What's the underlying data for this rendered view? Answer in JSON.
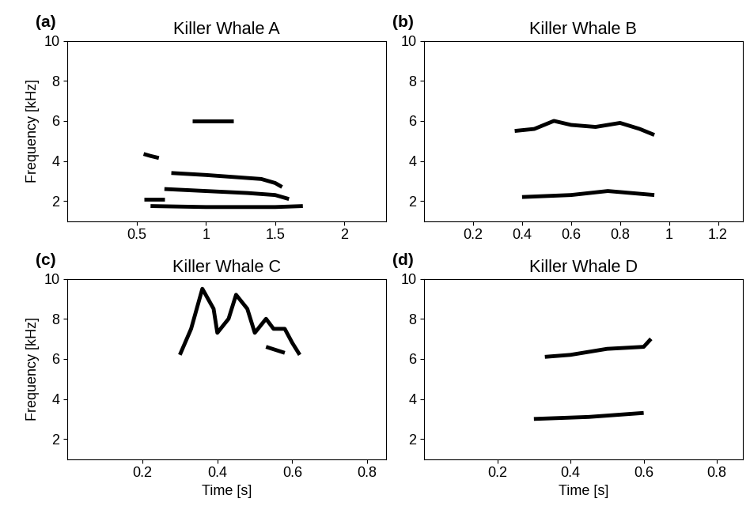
{
  "chart_data": [
    {
      "type": "line",
      "annotation": "(a)",
      "title": "Killer Whale A",
      "y_label": "Frequency [kHz]",
      "xlim": [
        0,
        2.3
      ],
      "xticks": [
        0.5,
        1,
        1.5,
        2
      ],
      "ylim": [
        1,
        10
      ],
      "yticks": [
        2,
        4,
        6,
        8,
        10
      ],
      "series": [
        {
          "color": "#000000",
          "x": [
            0.75,
            1.0,
            1.2,
            1.4,
            1.5,
            1.55
          ],
          "values": [
            3.4,
            3.3,
            3.2,
            3.1,
            2.9,
            2.7
          ]
        },
        {
          "color": "#000000",
          "x": [
            0.7,
            1.0,
            1.3,
            1.5,
            1.6
          ],
          "values": [
            2.6,
            2.5,
            2.4,
            2.3,
            2.1
          ]
        },
        {
          "color": "#000000",
          "x": [
            0.55,
            0.6,
            0.66
          ],
          "values": [
            4.35,
            4.25,
            4.15
          ]
        },
        {
          "color": "#000000",
          "x": [
            0.9,
            1.2
          ],
          "values": [
            6.0,
            6.0
          ]
        },
        {
          "color": "#000000",
          "x": [
            0.6,
            1.0,
            1.5,
            1.7
          ],
          "values": [
            1.75,
            1.7,
            1.7,
            1.75
          ]
        },
        {
          "color": "#000000",
          "x": [
            0.55,
            0.7
          ],
          "values": [
            2.1,
            2.1
          ]
        }
      ]
    },
    {
      "type": "line",
      "annotation": "(b)",
      "title": "Killer Whale B",
      "xlim": [
        0,
        1.3
      ],
      "xticks": [
        0.2,
        0.4,
        0.6,
        0.8,
        1,
        1.2
      ],
      "ylim": [
        1,
        10
      ],
      "yticks": [
        2,
        4,
        6,
        8,
        10
      ],
      "series": [
        {
          "color": "#000000",
          "x": [
            0.37,
            0.45,
            0.53,
            0.6,
            0.7,
            0.8,
            0.88,
            0.94
          ],
          "values": [
            5.5,
            5.6,
            6.0,
            5.8,
            5.7,
            5.9,
            5.6,
            5.3
          ]
        },
        {
          "color": "#000000",
          "x": [
            0.4,
            0.6,
            0.75,
            0.94
          ],
          "values": [
            2.2,
            2.3,
            2.5,
            2.3
          ]
        }
      ]
    },
    {
      "type": "line",
      "annotation": "(c)",
      "title": "Killer Whale C",
      "x_label": "Time [s]",
      "y_label": "Frequency [kHz]",
      "xlim": [
        0,
        0.85
      ],
      "xticks": [
        0.2,
        0.4,
        0.6,
        0.8
      ],
      "ylim": [
        1,
        10
      ],
      "yticks": [
        2,
        4,
        6,
        8,
        10
      ],
      "series": [
        {
          "color": "#000000",
          "x": [
            0.3,
            0.33,
            0.36,
            0.39,
            0.4,
            0.43,
            0.45,
            0.48,
            0.5,
            0.53,
            0.55,
            0.58,
            0.6,
            0.62
          ],
          "values": [
            6.2,
            7.5,
            9.5,
            8.5,
            7.3,
            8.0,
            9.2,
            8.5,
            7.3,
            8.0,
            7.5,
            7.5,
            6.8,
            6.2
          ]
        },
        {
          "color": "#000000",
          "x": [
            0.53,
            0.58
          ],
          "values": [
            6.6,
            6.3
          ]
        }
      ]
    },
    {
      "type": "line",
      "annotation": "(d)",
      "title": "Killer Whale D",
      "x_label": "Time [s]",
      "xlim": [
        0,
        0.87
      ],
      "xticks": [
        0.2,
        0.4,
        0.6,
        0.8
      ],
      "ylim": [
        1,
        10
      ],
      "yticks": [
        2,
        4,
        6,
        8,
        10
      ],
      "series": [
        {
          "color": "#000000",
          "x": [
            0.33,
            0.4,
            0.5,
            0.6,
            0.62
          ],
          "values": [
            6.1,
            6.2,
            6.5,
            6.6,
            7.0
          ]
        },
        {
          "color": "#000000",
          "x": [
            0.3,
            0.45,
            0.6
          ],
          "values": [
            3.0,
            3.1,
            3.3
          ]
        }
      ]
    }
  ]
}
